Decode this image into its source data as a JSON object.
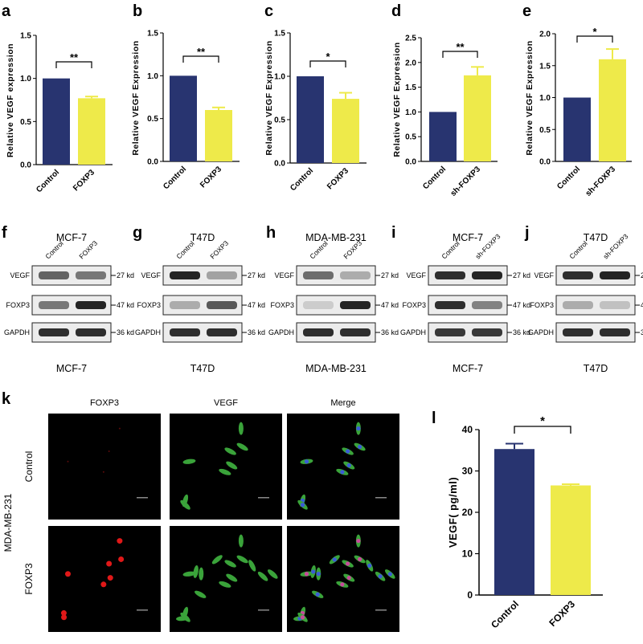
{
  "colors": {
    "control": "#283470",
    "treat": "#eeea4a"
  },
  "bar_panels": [
    {
      "label": "a",
      "ylabel": "Relative VEGF expression",
      "ticks": [
        "0.0",
        "0.5",
        "1.0",
        "1.5"
      ],
      "sig": "**"
    },
    {
      "label": "b",
      "ylabel": "Relative VEGF Expression",
      "ticks": [
        "0.0",
        "0.5",
        "1.0",
        "1.5"
      ],
      "sig": "**"
    },
    {
      "label": "c",
      "ylabel": "Relative VEGF Expression",
      "ticks": [
        "0.0",
        "0.5",
        "1.0",
        "1.5"
      ],
      "sig": "*"
    },
    {
      "label": "d",
      "ylabel": "Relative VEGF Expression",
      "ticks": [
        "0.0",
        "0.5",
        "1.0",
        "1.5",
        "2.0",
        "2.5"
      ],
      "sig": "**"
    },
    {
      "label": "e",
      "ylabel": "Relative VEGF Expression",
      "ticks": [
        "0.0",
        "0.5",
        "1.0",
        "1.5",
        "2.0"
      ],
      "sig": "*"
    }
  ],
  "wb_panels": [
    {
      "label": "f",
      "top": "MCF-7",
      "bottom": "MCF-7",
      "col1": "Control",
      "col2": "FOXP3"
    },
    {
      "label": "g",
      "top": "T47D",
      "bottom": "T47D",
      "col1": "Control",
      "col2": "FOXP3"
    },
    {
      "label": "h",
      "top": "MDA-MB-231",
      "bottom": "MDA-MB-231",
      "col1": "Control",
      "col2": "FOXP3"
    },
    {
      "label": "i",
      "top": "MCF-7",
      "bottom": "MCF-7",
      "col1": "Control",
      "col2": "sh-FOXP3"
    },
    {
      "label": "j",
      "top": "T47D",
      "bottom": "T47D",
      "col1": "Control",
      "col2": "sh-FOXP3"
    }
  ],
  "wb_rows": {
    "vegf": "VEGF",
    "foxp3": "FOXP3",
    "gapdh": "GAPDH",
    "kd27": "27 kd",
    "kd47": "47 kd",
    "kd36": "36 kd"
  },
  "panel_k": {
    "label": "k",
    "columns": [
      "FOXP3",
      "VEGF",
      "Merge"
    ],
    "rows": [
      "Control",
      "FOXP3"
    ],
    "cell_line": "MDA-MB-231"
  },
  "panel_l": {
    "label": "l",
    "ylabel": "VEGF( pg/ml)",
    "ticks": [
      "0",
      "10",
      "20",
      "30",
      "40"
    ],
    "sig": "*"
  },
  "chart_data": [
    {
      "type": "bar",
      "panel": "a",
      "categories": [
        "Control",
        "FOXP3"
      ],
      "values": [
        1.0,
        0.77
      ],
      "errors": [
        0,
        0.02
      ],
      "ylabel": "Relative VEGF expression",
      "ylim": [
        0,
        1.5
      ]
    },
    {
      "type": "bar",
      "panel": "b",
      "categories": [
        "Control",
        "FOXP3"
      ],
      "values": [
        1.0,
        0.6
      ],
      "errors": [
        0,
        0.03
      ],
      "ylabel": "Relative VEGF Expression",
      "ylim": [
        0,
        1.5
      ]
    },
    {
      "type": "bar",
      "panel": "c",
      "categories": [
        "Control",
        "FOXP3"
      ],
      "values": [
        1.0,
        0.74
      ],
      "errors": [
        0,
        0.07
      ],
      "ylabel": "Relative VEGF Expression",
      "ylim": [
        0,
        1.5
      ]
    },
    {
      "type": "bar",
      "panel": "d",
      "categories": [
        "Control",
        "sh-FOXP3"
      ],
      "values": [
        1.0,
        1.74
      ],
      "errors": [
        0,
        0.17
      ],
      "ylabel": "Relative VEGF Expression",
      "ylim": [
        0,
        2.5
      ]
    },
    {
      "type": "bar",
      "panel": "e",
      "categories": [
        "Control",
        "sh-FOXP3"
      ],
      "values": [
        1.0,
        1.6
      ],
      "errors": [
        0,
        0.16
      ],
      "ylabel": "Relative VEGF Expression",
      "ylim": [
        0,
        2.0
      ]
    },
    {
      "type": "bar",
      "panel": "l",
      "categories": [
        "Control",
        "FOXP3"
      ],
      "values": [
        35.3,
        26.5
      ],
      "errors": [
        1.3,
        0.3
      ],
      "ylabel": "VEGF( pg/ml)",
      "ylim": [
        0,
        40
      ]
    }
  ]
}
